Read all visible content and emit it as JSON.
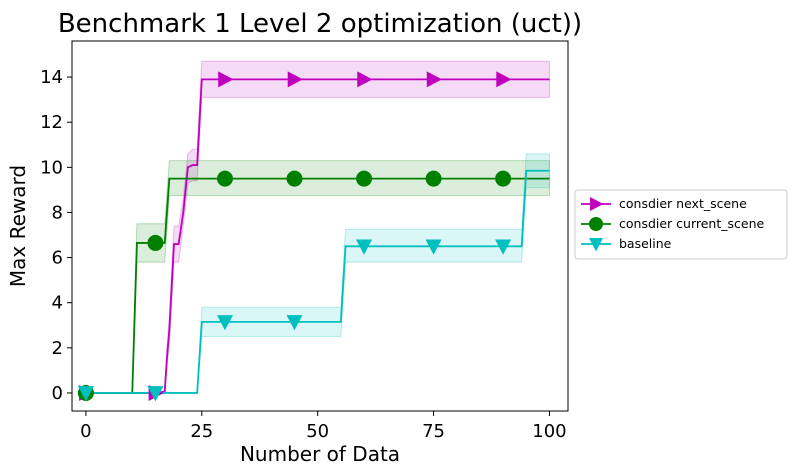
{
  "chart_data": {
    "type": "line",
    "title": "Benchmark 1 Level 2 optimization (uct))",
    "xlabel": "Number of Data",
    "ylabel": "Max Reward",
    "xlim": [
      -3,
      104
    ],
    "ylim": [
      -0.8,
      15.6
    ],
    "xticks": [
      0,
      25,
      50,
      75,
      100
    ],
    "yticks": [
      0,
      2,
      4,
      6,
      8,
      10,
      12,
      14
    ],
    "grid": false,
    "legend_position": "center-right outside",
    "series": [
      {
        "name": "consdier next_scene",
        "color": "#bf00bf",
        "marker": "triangle-right",
        "x": [
          0,
          15,
          17,
          17.5,
          18,
          19,
          20,
          21,
          22,
          23,
          24,
          25,
          100
        ],
        "y": [
          0,
          0,
          0.05,
          1.6,
          2.8,
          6.6,
          6.6,
          8.0,
          10.0,
          10.1,
          10.1,
          13.9,
          13.9
        ],
        "band_lower": [
          0,
          0,
          0,
          1.2,
          2.1,
          5.8,
          5.8,
          7.4,
          9.3,
          9.4,
          9.4,
          13.1,
          13.1
        ],
        "band_upper": [
          0,
          0,
          0.1,
          2.0,
          3.4,
          7.4,
          7.4,
          8.6,
          10.6,
          10.8,
          10.8,
          14.7,
          14.7
        ],
        "marker_x": [
          0,
          15,
          30,
          45,
          60,
          75,
          90
        ]
      },
      {
        "name": "consdier current_scene",
        "color": "#008000",
        "marker": "circle",
        "x": [
          0,
          10,
          11,
          17,
          18,
          100
        ],
        "y": [
          0,
          0,
          6.65,
          6.65,
          9.5,
          9.5
        ],
        "band_lower": [
          0,
          0,
          5.8,
          5.8,
          8.75,
          8.75
        ],
        "band_upper": [
          0,
          0,
          7.5,
          7.5,
          10.3,
          10.3
        ],
        "marker_x": [
          0,
          15,
          30,
          45,
          60,
          75,
          90
        ]
      },
      {
        "name": "baseline",
        "color": "#00bfbf",
        "marker": "triangle-down",
        "x": [
          0,
          24,
          25,
          55,
          56,
          94,
          95,
          100
        ],
        "y": [
          0,
          0,
          3.15,
          3.15,
          6.5,
          6.5,
          9.85,
          9.85
        ],
        "band_lower": [
          0,
          0,
          2.5,
          2.5,
          5.8,
          5.8,
          9.1,
          9.1
        ],
        "band_upper": [
          0,
          0,
          3.8,
          3.8,
          7.25,
          7.25,
          10.6,
          10.6
        ],
        "marker_x": [
          0,
          15,
          30,
          45,
          60,
          75,
          90
        ]
      }
    ]
  }
}
